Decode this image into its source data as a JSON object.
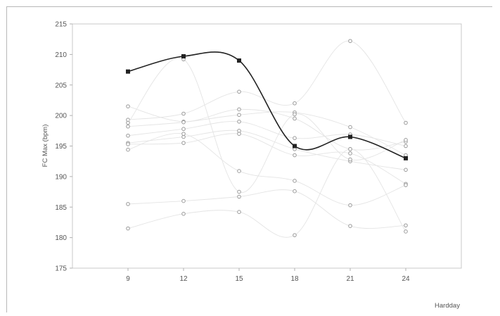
{
  "chart_data": {
    "type": "line",
    "xlabel": "Hardday",
    "ylabel": "FC Max (bpm)",
    "x": [
      9,
      12,
      15,
      18,
      21,
      24
    ],
    "ylim": [
      175,
      215
    ],
    "yticks": [
      175,
      180,
      185,
      190,
      195,
      200,
      205,
      210,
      215
    ],
    "grid": false,
    "legend": "none",
    "highlight": {
      "values": [
        207.2,
        209.7,
        209.0,
        195.0,
        196.5,
        193.0
      ],
      "color": "#222222",
      "smooth": true
    },
    "series": [
      {
        "values": [
          201.5,
          199.0,
          201.0,
          199.5,
          194.5,
          195.7
        ]
      },
      {
        "values": [
          199.3,
          200.3,
          203.9,
          202.0,
          212.2,
          198.8
        ]
      },
      {
        "values": [
          198.2,
          198.9,
          200.1,
          200.5,
          198.1,
          193.5
        ]
      },
      {
        "values": [
          196.7,
          197.8,
          199.0,
          196.3,
          196.9,
          195.0
        ]
      },
      {
        "values": [
          195.5,
          196.5,
          197.5,
          194.5,
          192.5,
          191.1
        ]
      },
      {
        "values": [
          195.3,
          195.5,
          197.0,
          193.5,
          193.8,
          188.8
        ]
      },
      {
        "values": [
          194.4,
          197.0,
          190.9,
          189.3,
          185.3,
          188.6
        ]
      },
      {
        "values": [
          185.5,
          186.0,
          186.7,
          187.6,
          181.9,
          182.0
        ]
      },
      {
        "values": [
          181.5,
          183.9,
          184.2,
          180.4,
          194.5,
          181.0
        ]
      },
      {
        "values": [
          198.8,
          209.2,
          187.5,
          200.2,
          192.8,
          196.0
        ]
      }
    ]
  }
}
